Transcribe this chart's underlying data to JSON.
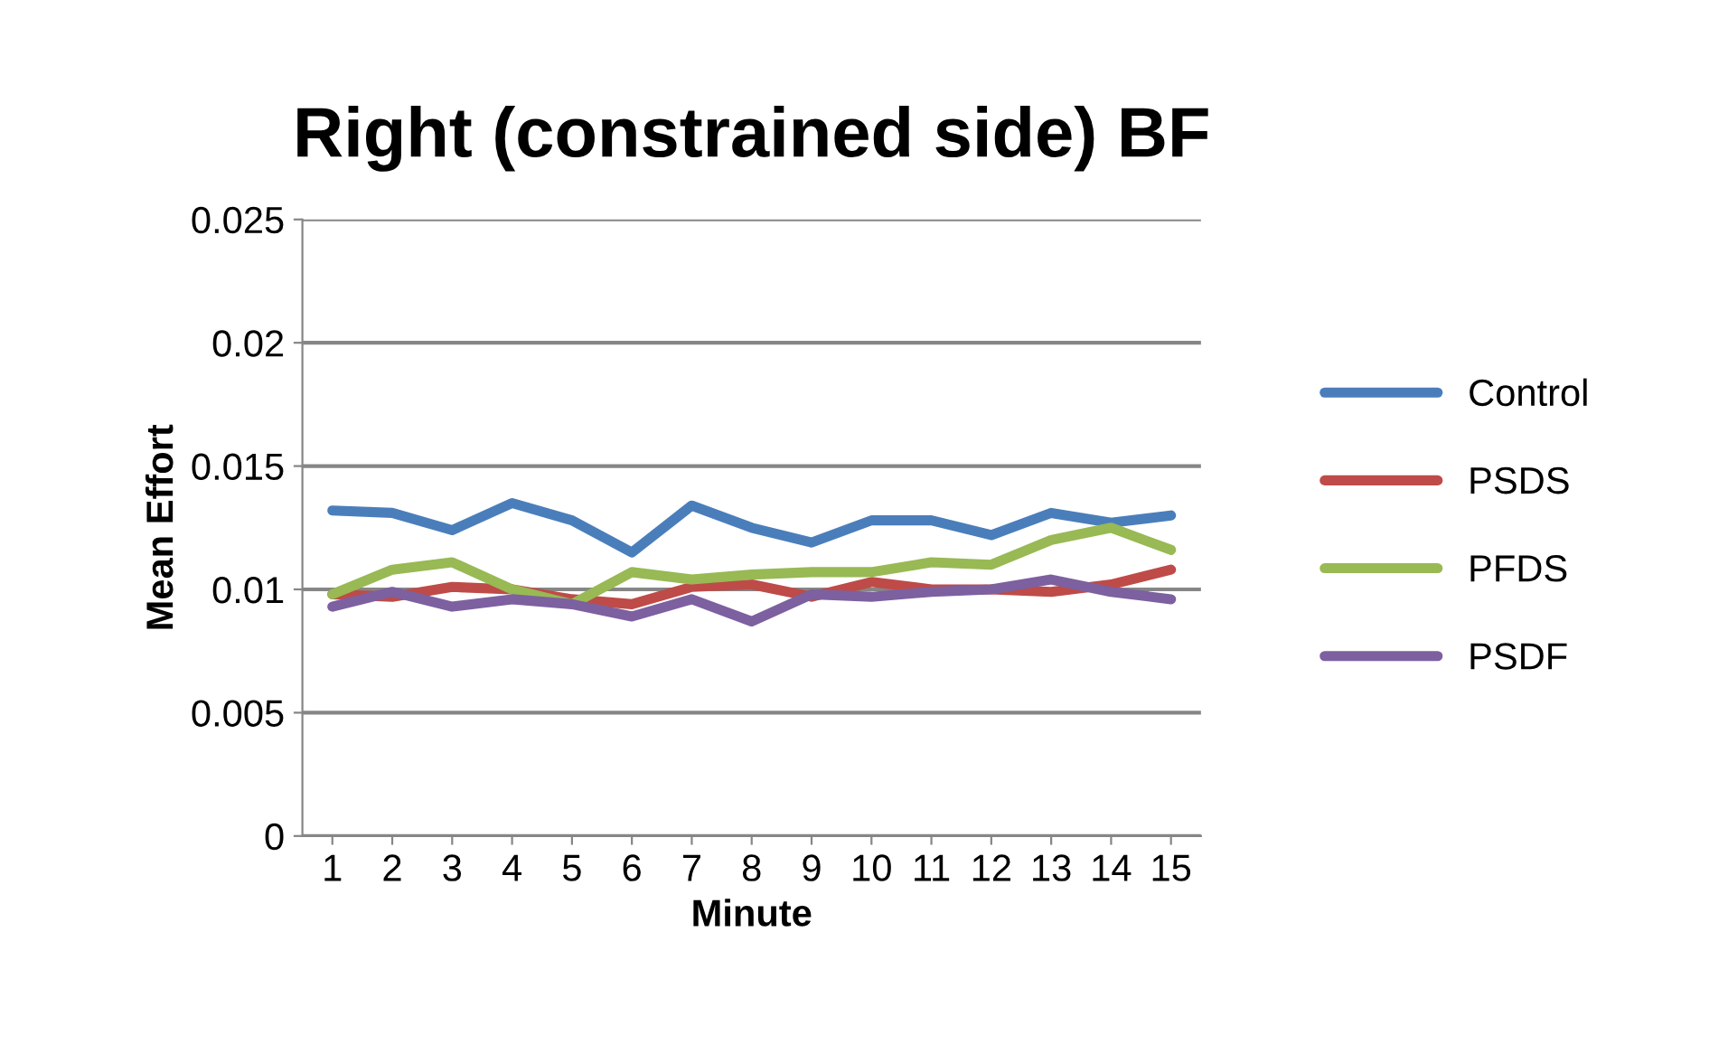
{
  "chart_data": {
    "type": "line",
    "title": "Right (constrained side) BF",
    "xlabel": "Minute",
    "ylabel": "Mean Effort",
    "categories": [
      "1",
      "2",
      "3",
      "4",
      "5",
      "6",
      "7",
      "8",
      "9",
      "10",
      "11",
      "12",
      "13",
      "14",
      "15"
    ],
    "series": [
      {
        "name": "Control",
        "color": "#4a7ebb",
        "values": [
          0.0132,
          0.0131,
          0.0124,
          0.0135,
          0.0128,
          0.0115,
          0.0134,
          0.0125,
          0.0119,
          0.0128,
          0.0128,
          0.0122,
          0.0131,
          0.0127,
          0.013
        ]
      },
      {
        "name": "PSDS",
        "color": "#be4b48",
        "values": [
          0.0098,
          0.0097,
          0.0101,
          0.01,
          0.0096,
          0.0094,
          0.0101,
          0.0102,
          0.0097,
          0.0103,
          0.01,
          0.01,
          0.0099,
          0.0102,
          0.0108
        ]
      },
      {
        "name": "PFDS",
        "color": "#98b954",
        "values": [
          0.0098,
          0.0108,
          0.0111,
          0.01,
          0.0094,
          0.0107,
          0.0104,
          0.0106,
          0.0107,
          0.0107,
          0.0111,
          0.011,
          0.012,
          0.0125,
          0.0116
        ]
      },
      {
        "name": "PSDF",
        "color": "#7d60a0",
        "values": [
          0.0093,
          0.0099,
          0.0093,
          0.0096,
          0.0094,
          0.0089,
          0.0096,
          0.0087,
          0.0098,
          0.0097,
          0.0099,
          0.01,
          0.0104,
          0.0099,
          0.0096
        ]
      }
    ],
    "ylim": [
      0,
      0.025
    ],
    "yticks": [
      0,
      0.005,
      0.01,
      0.015,
      0.02,
      0.025
    ],
    "grid": "y",
    "legend": "right",
    "marker": "none",
    "line_style": "solid"
  }
}
